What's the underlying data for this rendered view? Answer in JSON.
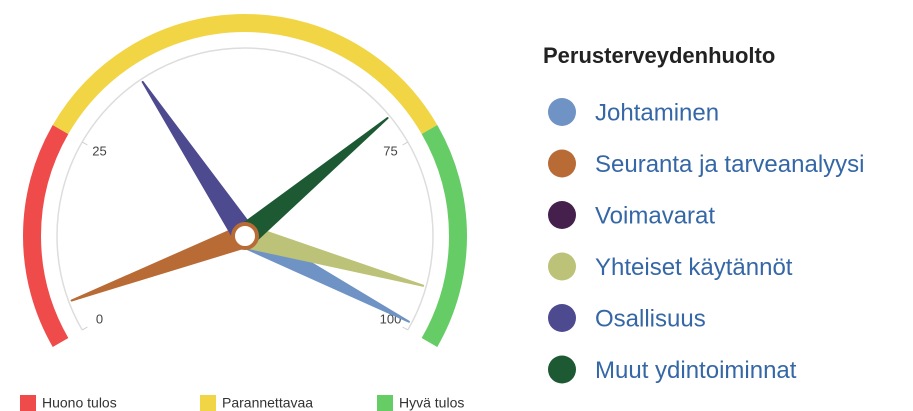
{
  "chart_data": {
    "type": "gauge",
    "title": "Perusterveydenhuolto",
    "ylim": [
      0,
      100
    ],
    "yticks": [
      0,
      25,
      75,
      100
    ],
    "bands": [
      {
        "name": "Huono tulos",
        "from": 0,
        "to": 25,
        "color": "#ef4b4b"
      },
      {
        "name": "Parannettavaa",
        "from": 25,
        "to": 75,
        "color": "#f2d545"
      },
      {
        "name": "Hyvä tulos",
        "from": 75,
        "to": 100,
        "color": "#66cc66"
      }
    ],
    "series": [
      {
        "name": "Johtaminen",
        "color": "#6f93c4",
        "values": [
          99
        ]
      },
      {
        "name": "Seuranta ja tarveanalyysi",
        "color": "#b96b36",
        "values": [
          4
        ]
      },
      {
        "name": "Voimavarat",
        "color": "#45204d",
        "values": [
          null
        ]
      },
      {
        "name": "Yhteiset käytännöt",
        "color": "#bcc277",
        "values": [
          94
        ]
      },
      {
        "name": "Osallisuus",
        "color": "#4e4a8f",
        "values": [
          36
        ]
      },
      {
        "name": "Muut ydintoiminnat",
        "color": "#1d5a33",
        "values": [
          71
        ]
      }
    ]
  }
}
